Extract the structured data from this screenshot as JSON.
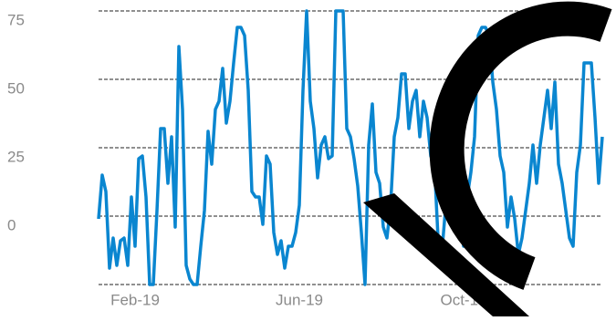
{
  "chart_data": {
    "type": "line",
    "x": [
      0,
      1,
      2,
      3,
      4,
      5,
      6,
      7,
      8,
      9,
      10,
      11,
      12,
      13,
      14,
      15,
      16,
      17,
      18,
      19,
      20,
      21,
      22,
      23,
      24,
      25,
      26,
      27,
      28,
      29,
      30,
      31,
      32,
      33,
      34,
      35,
      36,
      37,
      38,
      39,
      40,
      41,
      42,
      43,
      44,
      45,
      46,
      47,
      48,
      49,
      50,
      51,
      52,
      53,
      54,
      55,
      56,
      57,
      58,
      59,
      60,
      61,
      62,
      63,
      64,
      65,
      66,
      67,
      68,
      69,
      70,
      71,
      72,
      73,
      74,
      75,
      76,
      77,
      78,
      79,
      80,
      81,
      82,
      83,
      84,
      85,
      86,
      87,
      88,
      89,
      90,
      91,
      92,
      93,
      94,
      95,
      96,
      97,
      98,
      99,
      100,
      101,
      102,
      103,
      104,
      105,
      106,
      107,
      108,
      109,
      110,
      111,
      112,
      113,
      114,
      115,
      116,
      117,
      118,
      119,
      120,
      121,
      122,
      123,
      124,
      125,
      126,
      127,
      128,
      129,
      130,
      131,
      132,
      133,
      134,
      135,
      136,
      137,
      138
    ],
    "series": [
      {
        "color": "#0a86d0",
        "values": [
          -1,
          15,
          9,
          -19,
          -8,
          -18,
          -9,
          -8,
          -18,
          7,
          -11,
          21,
          22,
          7,
          -25,
          -25,
          2,
          32,
          32,
          12,
          29,
          -4,
          62,
          39,
          -18,
          -23,
          -25,
          -25,
          -11,
          2,
          31,
          19,
          39,
          42,
          54,
          34,
          42,
          56,
          69,
          69,
          66,
          46,
          9,
          7,
          7,
          -3,
          22,
          19,
          -6,
          -14,
          -9,
          -19,
          -11,
          -11,
          -6,
          4,
          46,
          75,
          42,
          32,
          14,
          26,
          29,
          21,
          22,
          75,
          75,
          75,
          32,
          29,
          21,
          11,
          -6,
          -25,
          26,
          41,
          16,
          12,
          -4,
          -8,
          4,
          29,
          36,
          52,
          52,
          32,
          42,
          46,
          29,
          42,
          36,
          22,
          19,
          -8,
          -14,
          2,
          32,
          11,
          -4,
          2,
          -11,
          7,
          16,
          29,
          66,
          69,
          69,
          66,
          49,
          39,
          22,
          16,
          -4,
          7,
          -1,
          -14,
          -8,
          2,
          12,
          26,
          12,
          26,
          36,
          46,
          32,
          49,
          19,
          12,
          2,
          -8,
          -11,
          16,
          26,
          56,
          56,
          56,
          36,
          12,
          29
        ]
      }
    ],
    "xlim": [
      0,
      138
    ],
    "xticks": [
      {
        "value": 10,
        "label": "Feb-19"
      },
      {
        "value": 55,
        "label": "Jun-19"
      },
      {
        "value": 100,
        "label": "Oct-19"
      }
    ],
    "ylim": [
      -25,
      75
    ],
    "yticks": [
      0,
      25,
      50,
      75
    ],
    "grid": true
  }
}
